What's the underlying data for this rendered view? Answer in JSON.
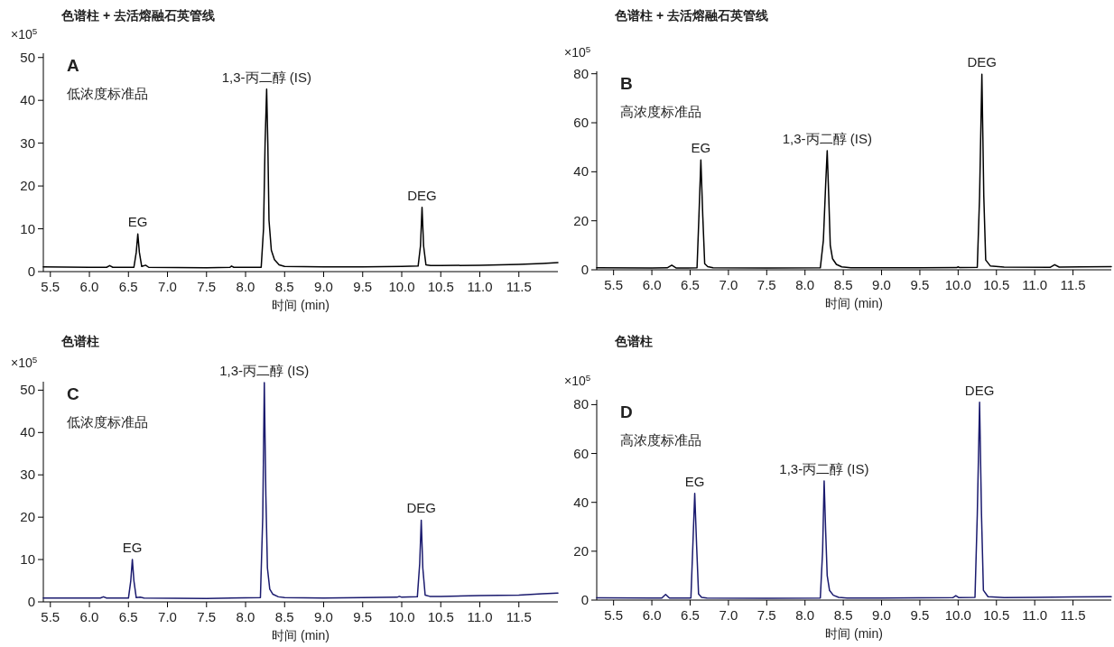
{
  "chart_data": [
    {
      "type": "line",
      "title": "色谱柱 + 去活熔融石英管线",
      "subtitle": "低浓度标准品",
      "xlabel": "时间 (min)",
      "ylabel": "×10$^{5}$",
      "xlim": [
        5.41,
        12.0
      ],
      "ylim": [
        0,
        51
      ],
      "xticks": [
        5.5,
        {
          "value": 6,
          "label": "6.0"
        },
        6.5,
        {
          "value": 7,
          "label": "7.0"
        },
        7.5,
        {
          "value": 8,
          "label": "8.0"
        },
        8.5,
        {
          "value": 9,
          "label": "9.0"
        },
        9.5,
        {
          "value": 10,
          "label": "10.0"
        },
        10.5,
        {
          "value": 11,
          "label": "11.0"
        },
        11.5
      ],
      "yticks": [
        0,
        10,
        20,
        30,
        40,
        50
      ],
      "annotations": [
        "A",
        {
          "text": "EG",
          "x": 6.62,
          "y": 8.8
        },
        {
          "text": "1,3-丙二醇 (IS)",
          "x": 8.27,
          "y": 42.6
        },
        {
          "text": "DEG",
          "x": 10.26,
          "y": 15.0
        }
      ],
      "series": [
        {
          "color": "#000000",
          "x": [
            5.41,
            6.0,
            6.22,
            6.26,
            6.3,
            6.57,
            6.6,
            6.62,
            6.64,
            6.67,
            6.72,
            6.76,
            7.5,
            7.8,
            7.82,
            7.85,
            8.2,
            8.23,
            8.25,
            8.27,
            8.285,
            8.3,
            8.33,
            8.37,
            8.43,
            8.5,
            9.0,
            9.5,
            10.0,
            10.21,
            10.24,
            10.26,
            10.28,
            10.31,
            10.37,
            10.5,
            11.0,
            11.5,
            11.8,
            12.0
          ],
          "values": [
            1.1,
            1.0,
            1.0,
            1.4,
            1.0,
            1.0,
            4.5,
            8.8,
            4.5,
            1.2,
            1.5,
            1.0,
            0.9,
            1.0,
            1.3,
            1.0,
            1.0,
            10,
            30,
            42.6,
            30,
            12,
            5,
            2.8,
            1.6,
            1.2,
            1.1,
            1.1,
            1.2,
            1.3,
            6,
            15.0,
            6,
            1.6,
            1.4,
            1.4,
            1.5,
            1.7,
            1.9,
            2.1
          ]
        }
      ]
    },
    {
      "type": "line",
      "title": "色谱柱 + 去活熔融石英管线",
      "subtitle": "高浓度标准品",
      "xlabel": "时间 (min)",
      "ylabel": "×10$^{5}$",
      "xlim": [
        5.28,
        12.0
      ],
      "ylim": [
        0,
        81
      ],
      "xticks": [
        5.5,
        {
          "value": 6,
          "label": "6.0"
        },
        6.5,
        {
          "value": 7,
          "label": "7.0"
        },
        7.5,
        {
          "value": 8,
          "label": "8.0"
        },
        8.5,
        {
          "value": 9,
          "label": "9.0"
        },
        9.5,
        {
          "value": 10,
          "label": "10.0"
        },
        10.5,
        {
          "value": 11,
          "label": "11.0"
        },
        11.5
      ],
      "yticks": [
        0,
        20,
        40,
        60,
        80
      ],
      "annotations": [
        "B",
        {
          "text": "EG",
          "x": 6.64,
          "y": 44.8
        },
        {
          "text": "1,3-丙二醇 (IS)",
          "x": 8.29,
          "y": 48.6
        },
        {
          "text": "DEG",
          "x": 10.31,
          "y": 79.8
        }
      ],
      "series": [
        {
          "color": "#000000",
          "x": [
            5.28,
            6.0,
            6.2,
            6.26,
            6.32,
            6.59,
            6.615,
            6.64,
            6.665,
            6.69,
            6.73,
            6.8,
            7.5,
            8.2,
            8.24,
            8.27,
            8.29,
            8.31,
            8.33,
            8.36,
            8.41,
            8.48,
            8.6,
            9.0,
            9.5,
            9.98,
            10.0,
            10.02,
            10.25,
            10.28,
            10.31,
            10.335,
            10.36,
            10.42,
            10.6,
            11.2,
            11.26,
            11.32,
            11.6,
            12.0
          ],
          "values": [
            0.8,
            0.7,
            0.8,
            1.9,
            0.7,
            0.8,
            22,
            44.8,
            22,
            2.5,
            1.3,
            0.8,
            0.7,
            0.8,
            12,
            35,
            48.6,
            30,
            10,
            4.5,
            2.2,
            1.2,
            0.8,
            0.8,
            0.8,
            0.9,
            1.2,
            0.9,
            1.0,
            30,
            79.8,
            30,
            4,
            1.6,
            1.1,
            1.0,
            2.1,
            1.1,
            1.2,
            1.3
          ]
        }
      ]
    },
    {
      "type": "line",
      "title": "色谱柱",
      "subtitle": "低浓度标准品",
      "xlabel": "时间 (min)",
      "ylabel": "×10$^{5}$",
      "xlim": [
        5.41,
        12.0
      ],
      "ylim": [
        0,
        52
      ],
      "xticks": [
        5.5,
        {
          "value": 6,
          "label": "6.0"
        },
        6.5,
        {
          "value": 7,
          "label": "7.0"
        },
        7.5,
        {
          "value": 8,
          "label": "8.0"
        },
        8.5,
        {
          "value": 9,
          "label": "9.0"
        },
        9.5,
        {
          "value": 10,
          "label": "10.0"
        },
        10.5,
        {
          "value": 11,
          "label": "11.0"
        },
        11.5
      ],
      "yticks": [
        0,
        10,
        20,
        30,
        40,
        50
      ],
      "annotations": [
        "C",
        {
          "text": "EG",
          "x": 6.55,
          "y": 10.0
        },
        {
          "text": "1,3-丙二醇 (IS)",
          "x": 8.24,
          "y": 51.8
        },
        {
          "text": "DEG",
          "x": 10.25,
          "y": 19.3
        }
      ],
      "series": [
        {
          "color": "#1a1a6e",
          "x": [
            5.41,
            6.0,
            6.14,
            6.18,
            6.22,
            6.5,
            6.53,
            6.55,
            6.57,
            6.6,
            6.65,
            6.7,
            7.5,
            8.19,
            8.22,
            8.24,
            8.26,
            8.28,
            8.31,
            8.35,
            8.42,
            8.5,
            9.0,
            9.5,
            9.94,
            9.97,
            10.0,
            10.2,
            10.23,
            10.25,
            10.27,
            10.3,
            10.36,
            10.5,
            11.0,
            11.5,
            11.8,
            12.0
          ],
          "values": [
            0.9,
            0.9,
            0.9,
            1.2,
            0.9,
            0.9,
            5,
            10.0,
            5,
            1.0,
            1.1,
            0.9,
            0.8,
            1.0,
            20,
            51.8,
            25,
            8,
            3,
            1.8,
            1.2,
            1.0,
            0.9,
            1.0,
            1.1,
            1.3,
            1.1,
            1.2,
            9,
            19.3,
            8,
            1.6,
            1.3,
            1.3,
            1.5,
            1.6,
            1.9,
            2.1
          ]
        }
      ]
    },
    {
      "type": "line",
      "title": "色谱柱",
      "subtitle": "高浓度标准品",
      "xlabel": "时间 (min)",
      "ylabel": "×10$^{5}$",
      "xlim": [
        5.28,
        12.0
      ],
      "ylim": [
        0,
        82
      ],
      "xticks": [
        5.5,
        {
          "value": 6,
          "label": "6.0"
        },
        6.5,
        {
          "value": 7,
          "label": "7.0"
        },
        7.5,
        {
          "value": 8,
          "label": "8.0"
        },
        8.5,
        {
          "value": 9,
          "label": "9.0"
        },
        9.5,
        {
          "value": 10,
          "label": "10.0"
        },
        10.5,
        {
          "value": 11,
          "label": "11.0"
        },
        11.5
      ],
      "yticks": [
        0,
        20,
        40,
        60,
        80
      ],
      "annotations": [
        "D",
        {
          "text": "EG",
          "x": 6.56,
          "y": 43.7
        },
        {
          "text": "1,3-丙二醇 (IS)",
          "x": 8.25,
          "y": 48.8
        },
        {
          "text": "DEG",
          "x": 10.28,
          "y": 81.0
        }
      ],
      "series": [
        {
          "color": "#1a1a6e",
          "x": [
            5.28,
            6.0,
            6.13,
            6.18,
            6.23,
            6.51,
            6.535,
            6.56,
            6.585,
            6.61,
            6.65,
            6.72,
            7.5,
            8.2,
            8.23,
            8.25,
            8.27,
            8.29,
            8.32,
            8.37,
            8.44,
            8.55,
            9.0,
            9.5,
            9.93,
            9.97,
            10.01,
            10.22,
            10.25,
            10.28,
            10.305,
            10.33,
            10.39,
            10.6,
            11.0,
            11.5,
            12.0
          ],
          "values": [
            0.9,
            0.8,
            0.8,
            2.3,
            0.8,
            0.8,
            22,
            43.7,
            22,
            2.5,
            1.1,
            0.8,
            0.7,
            0.8,
            20,
            48.8,
            28,
            10,
            4,
            2,
            1.1,
            0.8,
            0.8,
            0.9,
            1.0,
            1.8,
            1.0,
            1.1,
            35,
            81.0,
            35,
            4,
            1.4,
            1.0,
            1.1,
            1.3,
            1.4
          ]
        }
      ]
    }
  ]
}
